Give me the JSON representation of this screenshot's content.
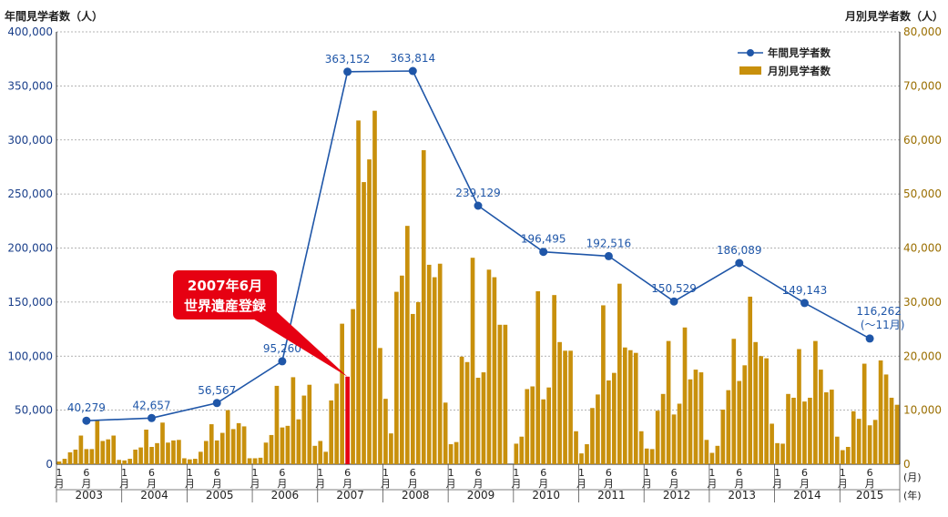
{
  "chart_data": {
    "type": "bar+line",
    "left_axis": {
      "label": "年間見学者数（人）",
      "min": 0,
      "max": 400000,
      "step": 50000,
      "ticks": [
        "0",
        "50,000",
        "100,000",
        "150,000",
        "200,000",
        "250,000",
        "300,000",
        "350,000",
        "400,000"
      ]
    },
    "right_axis": {
      "label": "月別見学者数（人）",
      "min": 0,
      "max": 80000,
      "step": 10000,
      "ticks": [
        "0",
        "10,000",
        "20,000",
        "30,000",
        "40,000",
        "50,000",
        "60,000",
        "70,000",
        "80,000"
      ]
    },
    "x_axis": {
      "month_labels": [
        "1\n月",
        "6\n月"
      ],
      "month_unit": "(月)",
      "year_unit": "(年)",
      "years": [
        "2003",
        "2004",
        "2005",
        "2006",
        "2007",
        "2008",
        "2009",
        "2010",
        "2011",
        "2012",
        "2013",
        "2014",
        "2015"
      ]
    },
    "legend": {
      "position": "top-right",
      "line_name": "年間見学者数",
      "bar_name": "月別見学者数"
    },
    "colors": {
      "line": "#1f56a8",
      "bar": "#c8900c",
      "highlight_bar": "#e60012",
      "callout": "#e60012",
      "grid": "#9a9a9a"
    },
    "annotation": {
      "lines": [
        "2007年6月",
        "世界遺産登録"
      ],
      "target_year": "2007",
      "target_month": 6
    },
    "line_series": {
      "name": "年間見学者数",
      "points": [
        {
          "year": "2003",
          "value": 40279,
          "label": "40,279"
        },
        {
          "year": "2004",
          "value": 42657,
          "label": "42,657"
        },
        {
          "year": "2005",
          "value": 56567,
          "label": "56,567"
        },
        {
          "year": "2006",
          "value": 95260,
          "label": "95,260"
        },
        {
          "year": "2007",
          "value": 363152,
          "label": "363,152"
        },
        {
          "year": "2008",
          "value": 363814,
          "label": "363,814"
        },
        {
          "year": "2009",
          "value": 239129,
          "label": "239,129"
        },
        {
          "year": "2010",
          "value": 196495,
          "label": "196,495"
        },
        {
          "year": "2011",
          "value": 192516,
          "label": "192,516"
        },
        {
          "year": "2012",
          "value": 150529,
          "label": "150,529"
        },
        {
          "year": "2013",
          "value": 186089,
          "label": "186,089"
        },
        {
          "year": "2014",
          "value": 149143,
          "label": "149,143"
        },
        {
          "year": "2015",
          "value": 116262,
          "label": "116,262",
          "note": "(～11月)"
        }
      ]
    },
    "bar_series": {
      "name": "月別見学者数",
      "start": "2003-01",
      "values": [
        500,
        1000,
        2200,
        2700,
        5300,
        2800,
        2800,
        8100,
        4300,
        4600,
        5300,
        800,
        700,
        1000,
        2700,
        3100,
        6400,
        3200,
        3900,
        7700,
        4000,
        4400,
        4500,
        1100,
        900,
        1000,
        2300,
        4300,
        7400,
        4400,
        5800,
        10000,
        6500,
        7600,
        7000,
        1100,
        1100,
        1200,
        4000,
        5400,
        14500,
        6800,
        7100,
        16100,
        8300,
        12700,
        14700,
        3400,
        4300,
        2300,
        11800,
        14900,
        26000,
        16200,
        28700,
        63600,
        52200,
        56400,
        65400,
        21500,
        12100,
        5700,
        31900,
        34900,
        44100,
        27800,
        30000,
        58100,
        36900,
        34600,
        37100,
        11400,
        3700,
        4100,
        19900,
        18900,
        38200,
        16000,
        17000,
        36000,
        34600,
        25800,
        25800,
        0,
        3800,
        5100,
        13900,
        14400,
        32000,
        12000,
        14200,
        31300,
        22600,
        21000,
        21000,
        6100,
        2000,
        3700,
        10400,
        12900,
        29400,
        15500,
        16900,
        33400,
        21600,
        21100,
        20600,
        6100,
        2900,
        2800,
        9900,
        13000,
        22800,
        9200,
        11200,
        25300,
        15700,
        17500,
        17000,
        4500,
        2100,
        3400,
        10100,
        13700,
        23200,
        15400,
        18300,
        31000,
        22600,
        20000,
        19600,
        7500,
        3900,
        3800,
        13000,
        12300,
        21300,
        11600,
        12300,
        22800,
        17500,
        13300,
        13800,
        5100,
        2600,
        3200,
        9800,
        8400,
        18600,
        7200,
        8200,
        19200,
        16600,
        12300,
        11000
      ]
    }
  }
}
